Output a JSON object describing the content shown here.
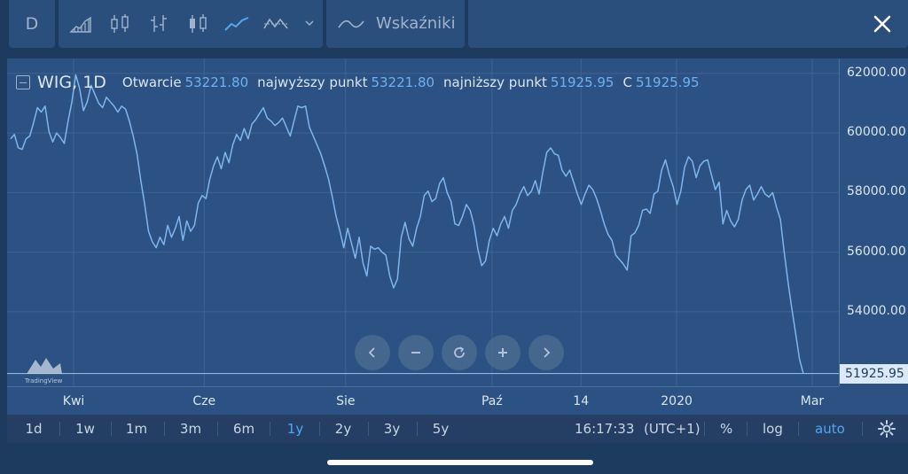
{
  "toolbar": {
    "interval": "D",
    "indicators_label": "Wskaźniki",
    "chart_styles": [
      {
        "icon": "bars-area-icon"
      },
      {
        "icon": "candles-icon"
      },
      {
        "icon": "ohlc-bars-icon"
      },
      {
        "icon": "hollow-candles-icon"
      },
      {
        "icon": "line-icon",
        "active": true
      },
      {
        "icon": "area-line-icon"
      }
    ]
  },
  "legend": {
    "symbol": "WIG, 1D",
    "open_label": "Otwarcie",
    "open": "53221.80",
    "high_label": "najwyższy punkt",
    "high": "53221.80",
    "low_label": "najniższy punkt",
    "low": "51925.95",
    "close_label": "C",
    "close": "51925.95"
  },
  "watermark": "TradingView",
  "chart_data": {
    "type": "line",
    "title": "",
    "xlabel": "",
    "ylabel": "",
    "x_ticks": [
      "Kwi",
      "Cze",
      "Sie",
      "Paź",
      "14",
      "2020",
      "Mar"
    ],
    "y_ticks": [
      "62000.00",
      "60000.00",
      "58000.00",
      "56000.00",
      "54000.00"
    ],
    "ylim": [
      51500,
      62500
    ],
    "grid": true,
    "last_price": 51925.95,
    "last_price_label": "51925.95",
    "line_color": "#7fb5ee",
    "series": [
      {
        "values": [
          59800,
          59950,
          59500,
          59450,
          59800,
          59900,
          60350,
          60850,
          60700,
          60900,
          60050,
          59700,
          60000,
          59850,
          59650,
          60400,
          61050,
          61950,
          61500,
          60750,
          61050,
          61600,
          61300,
          61000,
          60850,
          61200,
          61050,
          60900,
          60700,
          60900,
          60800,
          60400,
          59900,
          59300,
          58400,
          57600,
          56700,
          56350,
          56150,
          56500,
          56250,
          56900,
          56500,
          56800,
          57200,
          56400,
          57050,
          56700,
          56900,
          57650,
          57900,
          57800,
          58450,
          58900,
          59200,
          58800,
          59350,
          59000,
          59600,
          59950,
          59750,
          60150,
          59800,
          60300,
          60450,
          60650,
          60850,
          60500,
          60400,
          60250,
          60350,
          60500,
          60200,
          59900,
          60400,
          60900,
          60850,
          60900,
          60200,
          59900,
          59600,
          59300,
          58900,
          58450,
          57850,
          57200,
          56700,
          56150,
          56800,
          56300,
          55800,
          56500,
          55650,
          55200,
          56200,
          56100,
          56150,
          56000,
          55900,
          55200,
          54800,
          55100,
          56500,
          57000,
          56450,
          56200,
          56800,
          57200,
          57900,
          58050,
          57700,
          57800,
          58300,
          58500,
          58000,
          57700,
          56950,
          56900,
          57200,
          57600,
          57400,
          56900,
          56100,
          55550,
          55700,
          56400,
          56800,
          56550,
          56950,
          57200,
          56800,
          57400,
          57600,
          57950,
          58200,
          57900,
          58050,
          58400,
          57950,
          58700,
          59350,
          59500,
          59300,
          59250,
          58750,
          58550,
          58750,
          58350,
          57950,
          57600,
          57950,
          58250,
          58100,
          57800,
          57400,
          56950,
          56600,
          56400,
          55900,
          55750,
          55600,
          55400,
          56550,
          56650,
          56900,
          57400,
          57450,
          57300,
          57950,
          58050,
          58750,
          59100,
          58600,
          58200,
          57600,
          58050,
          58850,
          59200,
          59050,
          58500,
          58900,
          59050,
          59100,
          58600,
          58100,
          58350,
          56950,
          57400,
          57050,
          56850,
          57100,
          57750,
          58100,
          58250,
          57750,
          57950,
          58200,
          57950,
          57850,
          58000,
          57500,
          57100,
          56000,
          55000,
          54100,
          53250,
          52400,
          51925.95
        ]
      }
    ]
  },
  "nav_buttons": [
    {
      "icon": "scroll-left-icon"
    },
    {
      "icon": "zoom-out-icon"
    },
    {
      "icon": "reset-icon"
    },
    {
      "icon": "zoom-in-icon"
    },
    {
      "icon": "scroll-right-icon"
    }
  ],
  "bottom_bar": {
    "ranges": [
      "1d",
      "1w",
      "1m",
      "3m",
      "6m",
      "1y",
      "2y",
      "3y",
      "5y"
    ],
    "active_range": "1y",
    "time": "16:17:33",
    "timezone": "(UTC+1)",
    "percent_label": "%",
    "log_label": "log",
    "auto_label": "auto"
  }
}
